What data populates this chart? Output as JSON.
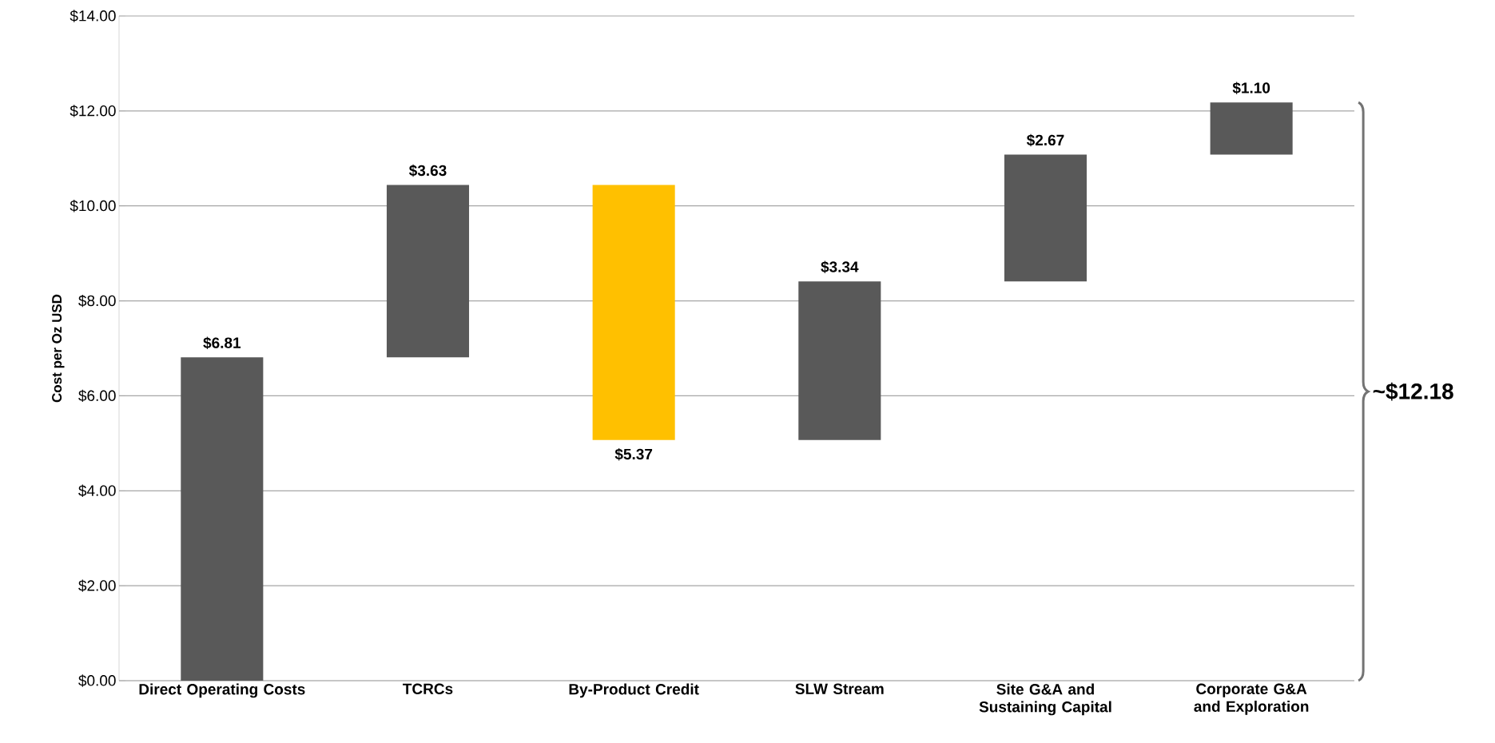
{
  "chart_data": {
    "type": "bar",
    "ylabel": "Cost per Oz USD",
    "categories": [
      "Direct Operating Costs",
      "TCRCs",
      "By-Product Credit",
      "SLW Stream",
      "Site G&A and Sustaining Capital",
      "Corporate G&A and Exploration"
    ],
    "values": [
      6.81,
      3.63,
      -5.37,
      3.34,
      2.67,
      1.1
    ],
    "base": [
      0,
      6.81,
      10.44,
      5.07,
      8.41,
      11.08
    ],
    "colors": [
      "#595959",
      "#595959",
      "#ffc000",
      "#595959",
      "#595959",
      "#595959"
    ],
    "value_labels": [
      "$6.81",
      "$3.63",
      "$5.37",
      "$3.34",
      "$2.67",
      "$1.10"
    ],
    "ylim": [
      0,
      14
    ],
    "yticks": [
      {
        "value": 0,
        "label": "$0.00"
      },
      {
        "value": 2,
        "label": "$2.00"
      },
      {
        "value": 4,
        "label": "$4.00"
      },
      {
        "value": 6,
        "label": "$6.00"
      },
      {
        "value": 8,
        "label": "$8.00"
      },
      {
        "value": 10,
        "label": "$10.00"
      },
      {
        "value": 12,
        "label": "$12.00"
      },
      {
        "value": 14,
        "label": "$14.00"
      }
    ],
    "grid": "y",
    "annotations": [
      "~$12.18"
    ]
  }
}
